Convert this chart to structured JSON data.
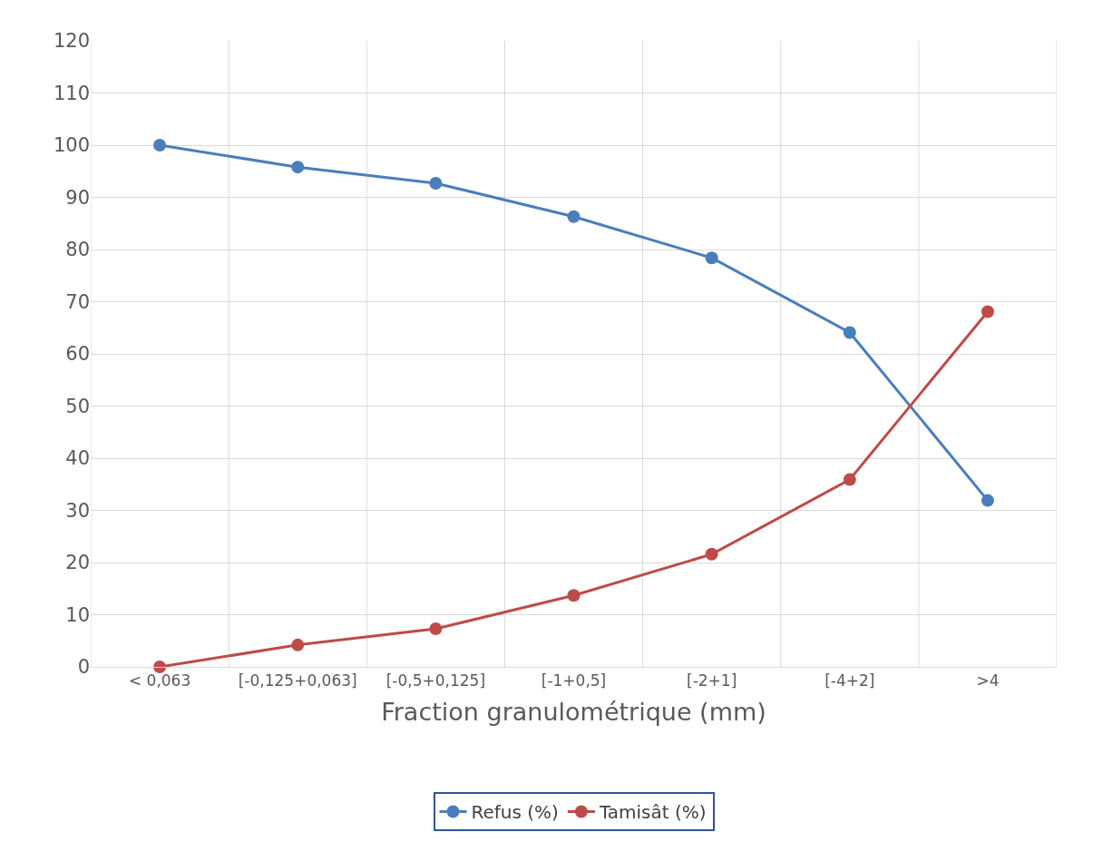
{
  "chart_data": {
    "type": "line",
    "xlabel": "Fraction granulométrique (mm)",
    "categories": [
      "< 0,063",
      "[-0,125+0,063]",
      "[-0,5+0,125]",
      "[-1+0,5]",
      "[-2+1]",
      "[-4+2]",
      ">4"
    ],
    "series": [
      {
        "name": "Refus (%)",
        "color": "#4a7ebb",
        "values": [
          100,
          95.8,
          92.7,
          86.3,
          78.4,
          64.1,
          31.9
        ]
      },
      {
        "name": "Tamisât (%)",
        "color": "#be4b48",
        "values": [
          0,
          4.2,
          7.3,
          13.7,
          21.6,
          35.9,
          68.1
        ]
      }
    ],
    "ylim": [
      0,
      120
    ],
    "yticks": [
      0,
      10,
      20,
      30,
      40,
      50,
      60,
      70,
      80,
      90,
      100,
      110,
      120
    ],
    "grid": true,
    "legend": "bottom",
    "marker": "circle",
    "line_style": "solid"
  }
}
